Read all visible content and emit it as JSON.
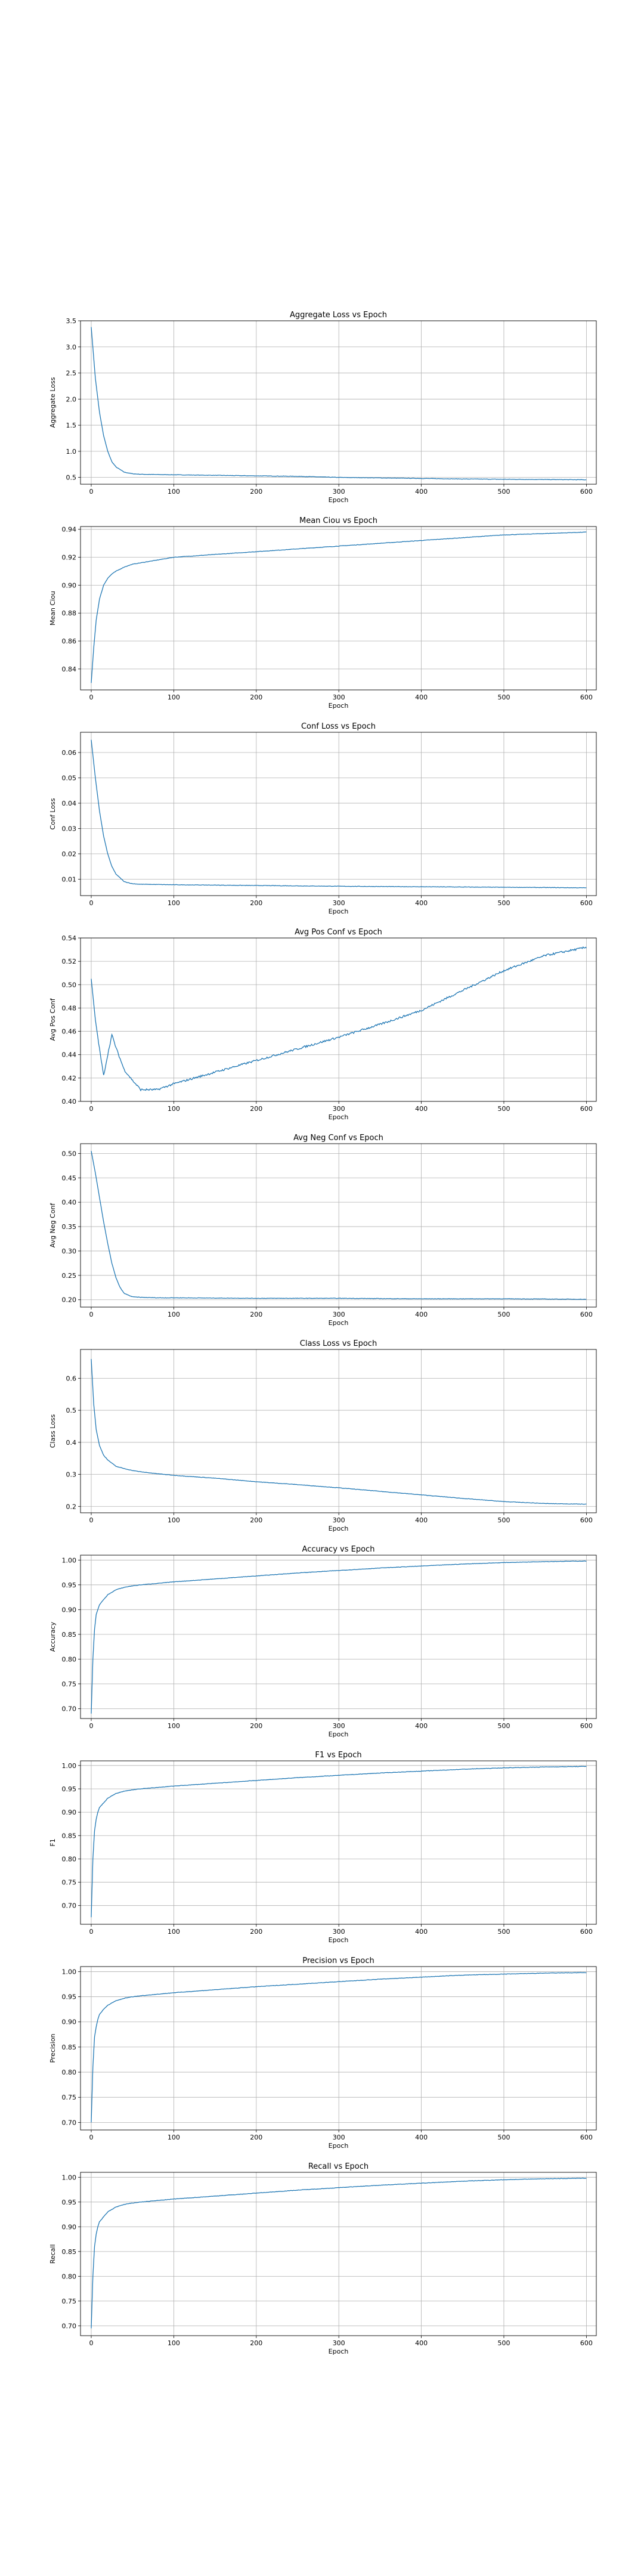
{
  "colors": {
    "line": "#1f77b4",
    "axes": "#000000",
    "grid": "#b0b0b0",
    "background": "#ffffff"
  },
  "chart_data": [
    {
      "type": "line",
      "title": "Aggregate Loss vs Epoch",
      "xlabel": "Epoch",
      "ylabel": "Aggregate Loss",
      "grid": true,
      "xlim": [
        -13,
        612
      ],
      "ylim": [
        0.37,
        3.5
      ],
      "xticks": [
        0,
        100,
        200,
        300,
        400,
        500,
        600
      ],
      "yticks": [
        0.5,
        1.0,
        1.5,
        2.0,
        2.5,
        3.0,
        3.5
      ],
      "yticklabels": [
        "0.5",
        "1.0",
        "1.5",
        "2.0",
        "2.5",
        "3.0",
        "3.5"
      ],
      "series": [
        {
          "x": [
            0,
            5,
            10,
            15,
            20,
            25,
            30,
            40,
            50,
            60,
            80,
            100,
            150,
            200,
            250,
            300,
            350,
            400,
            450,
            500,
            550,
            600
          ],
          "y": [
            3.38,
            2.4,
            1.75,
            1.3,
            1.0,
            0.8,
            0.7,
            0.6,
            0.57,
            0.56,
            0.555,
            0.55,
            0.54,
            0.53,
            0.52,
            0.5,
            0.49,
            0.48,
            0.47,
            0.465,
            0.46,
            0.455
          ]
        }
      ]
    },
    {
      "type": "line",
      "title": "Mean Ciou vs Epoch",
      "xlabel": "Epoch",
      "ylabel": "Mean Ciou",
      "grid": true,
      "xlim": [
        -13,
        612
      ],
      "ylim": [
        0.825,
        0.942
      ],
      "xticks": [
        0,
        100,
        200,
        300,
        400,
        500,
        600
      ],
      "yticks": [
        0.84,
        0.86,
        0.88,
        0.9,
        0.92,
        0.94
      ],
      "yticklabels": [
        "0.84",
        "0.86",
        "0.88",
        "0.90",
        "0.92",
        "0.94"
      ],
      "series": [
        {
          "x": [
            0,
            3,
            6,
            10,
            15,
            20,
            25,
            30,
            40,
            50,
            60,
            80,
            100,
            150,
            200,
            250,
            300,
            350,
            400,
            450,
            500,
            550,
            600
          ],
          "y": [
            0.83,
            0.855,
            0.875,
            0.89,
            0.9,
            0.905,
            0.908,
            0.91,
            0.913,
            0.915,
            0.916,
            0.918,
            0.92,
            0.922,
            0.924,
            0.926,
            0.928,
            0.93,
            0.932,
            0.934,
            0.936,
            0.937,
            0.938
          ]
        }
      ]
    },
    {
      "type": "line",
      "title": "Conf Loss vs Epoch",
      "xlabel": "Epoch",
      "ylabel": "Conf Loss",
      "grid": true,
      "xlim": [
        -13,
        612
      ],
      "ylim": [
        0.0035,
        0.068
      ],
      "xticks": [
        0,
        100,
        200,
        300,
        400,
        500,
        600
      ],
      "yticks": [
        0.01,
        0.02,
        0.03,
        0.04,
        0.05,
        0.06
      ],
      "yticklabels": [
        "0.01",
        "0.02",
        "0.03",
        "0.04",
        "0.05",
        "0.06"
      ],
      "series": [
        {
          "x": [
            0,
            5,
            10,
            15,
            20,
            25,
            30,
            40,
            50,
            60,
            80,
            100,
            200,
            300,
            400,
            500,
            600
          ],
          "y": [
            0.065,
            0.05,
            0.037,
            0.027,
            0.02,
            0.015,
            0.012,
            0.009,
            0.0082,
            0.008,
            0.0079,
            0.0078,
            0.0075,
            0.0072,
            0.007,
            0.0068,
            0.0066
          ]
        }
      ]
    },
    {
      "type": "line",
      "title": "Avg Pos Conf vs Epoch",
      "xlabel": "Epoch",
      "ylabel": "Avg Pos Conf",
      "grid": true,
      "xlim": [
        -13,
        612
      ],
      "ylim": [
        0.4,
        0.54
      ],
      "xticks": [
        0,
        100,
        200,
        300,
        400,
        500,
        600
      ],
      "yticks": [
        0.4,
        0.42,
        0.44,
        0.46,
        0.48,
        0.5,
        0.52,
        0.54
      ],
      "yticklabels": [
        "0.40",
        "0.42",
        "0.44",
        "0.46",
        "0.48",
        "0.50",
        "0.52",
        "0.54"
      ],
      "series": [
        {
          "x": [
            0,
            5,
            10,
            15,
            20,
            25,
            30,
            40,
            50,
            60,
            80,
            100,
            150,
            200,
            250,
            300,
            350,
            400,
            450,
            500,
            550,
            600
          ],
          "y": [
            0.505,
            0.47,
            0.445,
            0.422,
            0.44,
            0.457,
            0.446,
            0.427,
            0.418,
            0.41,
            0.41,
            0.415,
            0.425,
            0.435,
            0.445,
            0.455,
            0.466,
            0.478,
            0.495,
            0.512,
            0.525,
            0.532
          ]
        }
      ]
    },
    {
      "type": "line",
      "title": "Avg Neg Conf vs Epoch",
      "xlabel": "Epoch",
      "ylabel": "Avg Neg Conf",
      "grid": true,
      "xlim": [
        -13,
        612
      ],
      "ylim": [
        0.185,
        0.52
      ],
      "xticks": [
        0,
        100,
        200,
        300,
        400,
        500,
        600
      ],
      "yticks": [
        0.2,
        0.25,
        0.3,
        0.35,
        0.4,
        0.45,
        0.5
      ],
      "yticklabels": [
        "0.20",
        "0.25",
        "0.30",
        "0.35",
        "0.40",
        "0.45",
        "0.50"
      ],
      "series": [
        {
          "x": [
            0,
            5,
            10,
            15,
            20,
            25,
            30,
            35,
            40,
            50,
            60,
            80,
            100,
            200,
            300,
            400,
            500,
            600
          ],
          "y": [
            0.505,
            0.46,
            0.41,
            0.36,
            0.315,
            0.275,
            0.245,
            0.225,
            0.213,
            0.206,
            0.205,
            0.204,
            0.204,
            0.203,
            0.203,
            0.202,
            0.202,
            0.201
          ]
        }
      ]
    },
    {
      "type": "line",
      "title": "Class Loss vs Epoch",
      "xlabel": "Epoch",
      "ylabel": "Class Loss",
      "grid": true,
      "xlim": [
        -13,
        612
      ],
      "ylim": [
        0.18,
        0.69
      ],
      "xticks": [
        0,
        100,
        200,
        300,
        400,
        500,
        600
      ],
      "yticks": [
        0.2,
        0.3,
        0.4,
        0.5,
        0.6
      ],
      "yticklabels": [
        "0.2",
        "0.3",
        "0.4",
        "0.5",
        "0.6"
      ],
      "series": [
        {
          "x": [
            0,
            3,
            6,
            10,
            15,
            20,
            25,
            30,
            40,
            50,
            60,
            80,
            100,
            150,
            200,
            250,
            300,
            350,
            400,
            450,
            500,
            550,
            600
          ],
          "y": [
            0.66,
            0.52,
            0.44,
            0.39,
            0.36,
            0.345,
            0.335,
            0.325,
            0.318,
            0.312,
            0.308,
            0.302,
            0.297,
            0.288,
            0.277,
            0.268,
            0.258,
            0.247,
            0.236,
            0.225,
            0.215,
            0.209,
            0.207
          ]
        }
      ]
    },
    {
      "type": "line",
      "title": "Accuracy vs Epoch",
      "xlabel": "Epoch",
      "ylabel": "Accuracy",
      "grid": true,
      "xlim": [
        -13,
        612
      ],
      "ylim": [
        0.68,
        1.01
      ],
      "xticks": [
        0,
        100,
        200,
        300,
        400,
        500,
        600
      ],
      "yticks": [
        0.7,
        0.75,
        0.8,
        0.85,
        0.9,
        0.95,
        1.0
      ],
      "yticklabels": [
        "0.70",
        "0.75",
        "0.80",
        "0.85",
        "0.90",
        "0.95",
        "1.00"
      ],
      "series": [
        {
          "x": [
            0,
            2,
            4,
            6,
            8,
            10,
            15,
            20,
            30,
            40,
            50,
            60,
            80,
            100,
            150,
            200,
            250,
            300,
            350,
            400,
            450,
            500,
            550,
            600
          ],
          "y": [
            0.69,
            0.8,
            0.86,
            0.89,
            0.9,
            0.91,
            0.92,
            0.93,
            0.94,
            0.945,
            0.948,
            0.95,
            0.953,
            0.956,
            0.962,
            0.968,
            0.974,
            0.979,
            0.984,
            0.988,
            0.992,
            0.995,
            0.997,
            0.998
          ]
        }
      ]
    },
    {
      "type": "line",
      "title": "F1 vs Epoch",
      "xlabel": "Epoch",
      "ylabel": "F1",
      "grid": true,
      "xlim": [
        -13,
        612
      ],
      "ylim": [
        0.66,
        1.01
      ],
      "xticks": [
        0,
        100,
        200,
        300,
        400,
        500,
        600
      ],
      "yticks": [
        0.7,
        0.75,
        0.8,
        0.85,
        0.9,
        0.95,
        1.0
      ],
      "yticklabels": [
        "0.70",
        "0.75",
        "0.80",
        "0.85",
        "0.90",
        "0.95",
        "1.00"
      ],
      "series": [
        {
          "x": [
            0,
            2,
            4,
            6,
            8,
            10,
            15,
            20,
            30,
            40,
            50,
            60,
            80,
            100,
            150,
            200,
            250,
            300,
            350,
            400,
            450,
            500,
            550,
            600
          ],
          "y": [
            0.675,
            0.8,
            0.86,
            0.885,
            0.9,
            0.91,
            0.92,
            0.93,
            0.94,
            0.945,
            0.948,
            0.95,
            0.953,
            0.956,
            0.962,
            0.968,
            0.974,
            0.979,
            0.984,
            0.988,
            0.992,
            0.995,
            0.997,
            0.998
          ]
        }
      ]
    },
    {
      "type": "line",
      "title": "Precision vs Epoch",
      "xlabel": "Epoch",
      "ylabel": "Precision",
      "grid": true,
      "xlim": [
        -13,
        612
      ],
      "ylim": [
        0.685,
        1.01
      ],
      "xticks": [
        0,
        100,
        200,
        300,
        400,
        500,
        600
      ],
      "yticks": [
        0.7,
        0.75,
        0.8,
        0.85,
        0.9,
        0.95,
        1.0
      ],
      "yticklabels": [
        "0.70",
        "0.75",
        "0.80",
        "0.85",
        "0.90",
        "0.95",
        "1.00"
      ],
      "series": [
        {
          "x": [
            0,
            2,
            4,
            6,
            8,
            10,
            15,
            20,
            30,
            40,
            50,
            60,
            80,
            100,
            150,
            200,
            250,
            300,
            350,
            400,
            450,
            500,
            550,
            600
          ],
          "y": [
            0.7,
            0.81,
            0.87,
            0.89,
            0.905,
            0.915,
            0.925,
            0.933,
            0.942,
            0.947,
            0.95,
            0.952,
            0.955,
            0.958,
            0.964,
            0.97,
            0.975,
            0.98,
            0.985,
            0.989,
            0.993,
            0.995,
            0.997,
            0.998
          ]
        }
      ]
    },
    {
      "type": "line",
      "title": "Recall vs Epoch",
      "xlabel": "Epoch",
      "ylabel": "Recall",
      "grid": true,
      "xlim": [
        -13,
        612
      ],
      "ylim": [
        0.68,
        1.01
      ],
      "xticks": [
        0,
        100,
        200,
        300,
        400,
        500,
        600
      ],
      "yticks": [
        0.7,
        0.75,
        0.8,
        0.85,
        0.9,
        0.95,
        1.0
      ],
      "yticklabels": [
        "0.70",
        "0.75",
        "0.80",
        "0.85",
        "0.90",
        "0.95",
        "1.00"
      ],
      "series": [
        {
          "x": [
            0,
            2,
            4,
            6,
            8,
            10,
            15,
            20,
            30,
            40,
            50,
            60,
            80,
            100,
            150,
            200,
            250,
            300,
            350,
            400,
            450,
            500,
            550,
            600
          ],
          "y": [
            0.695,
            0.8,
            0.86,
            0.885,
            0.9,
            0.91,
            0.92,
            0.93,
            0.94,
            0.945,
            0.948,
            0.95,
            0.953,
            0.956,
            0.962,
            0.968,
            0.974,
            0.979,
            0.984,
            0.988,
            0.992,
            0.995,
            0.997,
            0.998
          ]
        }
      ]
    }
  ]
}
